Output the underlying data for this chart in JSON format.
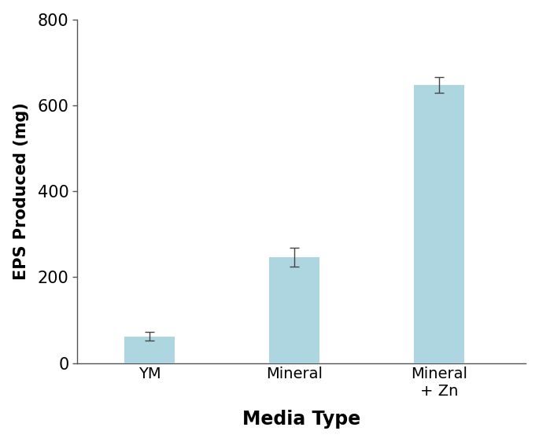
{
  "categories": [
    "YM",
    "Mineral",
    "Mineral\n+ Zn"
  ],
  "values": [
    62,
    247,
    648
  ],
  "errors": [
    10,
    22,
    18
  ],
  "bar_color": "#aed6e0",
  "bar_edgecolor": "none",
  "xlabel": "Media Type",
  "ylabel": "EPS Produced (mg)",
  "ylim": [
    0,
    800
  ],
  "yticks": [
    0,
    200,
    400,
    600,
    800
  ],
  "bar_width": 0.35,
  "xlabel_fontsize": 17,
  "ylabel_fontsize": 15,
  "tick_fontsize": 15,
  "xtick_fontsize": 14,
  "xlabel_fontweight": "bold",
  "ylabel_fontweight": "bold",
  "background_color": "#ffffff",
  "capsize": 4,
  "error_linewidth": 1.0,
  "bar_positions": [
    0.5,
    1.5,
    2.5
  ]
}
